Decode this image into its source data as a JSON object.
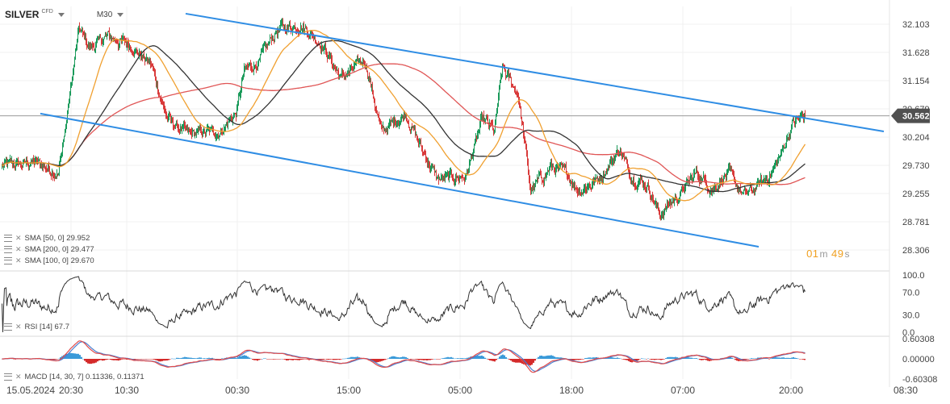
{
  "header": {
    "symbol": "SILVER",
    "badge": "CFD",
    "timeframe": "M30"
  },
  "indicators": {
    "sma50": "SMA [50, 0] 29.952",
    "sma200": "SMA [200, 0] 29.477",
    "sma100": "SMA [100, 0] 29.670",
    "rsi": "RSI [14] 67.7",
    "macd": "MACD [14, 30, 7] 0.11336, 0.11371"
  },
  "countdown": {
    "minutes": "01",
    "m_unit": "m",
    "seconds": "49",
    "s_unit": "s"
  },
  "colors": {
    "up_candle": "#1a9a5a",
    "down_candle": "#d93b3b",
    "channel": "#2f8de4",
    "sma_fast": "#f0a030",
    "sma_mid": "#333333",
    "sma_slow": "#e05555",
    "price_tag": "#505050",
    "rsi_line": "#333333",
    "macd_line": "#e04a4a",
    "signal_line": "#4a7fd0",
    "hist_pos": "#3a9ad9",
    "hist_neg": "#d42a2a"
  },
  "chart_data": {
    "type": "candlestick",
    "instrument": "SILVER",
    "timeframe": "M30",
    "y_ticks": [
      "32.103",
      "31.628",
      "31.154",
      "30.679",
      "30.204",
      "29.730",
      "29.255",
      "28.781",
      "28.306"
    ],
    "ylim": [
      28.306,
      32.103
    ],
    "current_price": "30.562",
    "x_ticks": [
      "15.05.2024",
      "20:30",
      "10:30",
      "00:30",
      "15:00",
      "05:00",
      "18:00",
      "07:00",
      "20:00",
      "08:30"
    ],
    "price_anchors": [
      [
        0,
        29.72
      ],
      [
        40,
        29.78
      ],
      [
        70,
        29.6
      ],
      [
        80,
        30.5
      ],
      [
        95,
        32.0
      ],
      [
        110,
        31.7
      ],
      [
        130,
        31.9
      ],
      [
        160,
        31.75
      ],
      [
        185,
        31.4
      ],
      [
        205,
        30.5
      ],
      [
        230,
        30.25
      ],
      [
        270,
        30.3
      ],
      [
        290,
        30.6
      ],
      [
        300,
        31.3
      ],
      [
        320,
        31.5
      ],
      [
        340,
        32.0
      ],
      [
        370,
        32.1
      ],
      [
        395,
        31.8
      ],
      [
        420,
        31.2
      ],
      [
        450,
        31.5
      ],
      [
        470,
        30.3
      ],
      [
        500,
        30.6
      ],
      [
        520,
        30.0
      ],
      [
        540,
        29.5
      ],
      [
        575,
        29.55
      ],
      [
        595,
        30.5
      ],
      [
        610,
        30.3
      ],
      [
        620,
        31.35
      ],
      [
        640,
        30.9
      ],
      [
        655,
        29.3
      ],
      [
        680,
        29.7
      ],
      [
        700,
        29.6
      ],
      [
        715,
        29.3
      ],
      [
        740,
        29.5
      ],
      [
        765,
        30.0
      ],
      [
        780,
        29.55
      ],
      [
        800,
        29.4
      ],
      [
        815,
        28.9
      ],
      [
        840,
        29.25
      ],
      [
        860,
        29.6
      ],
      [
        880,
        29.35
      ],
      [
        900,
        29.6
      ],
      [
        920,
        29.2
      ],
      [
        950,
        29.55
      ],
      [
        965,
        29.9
      ],
      [
        980,
        30.45
      ],
      [
        995,
        30.56
      ]
    ],
    "channel_upper": {
      "start": {
        "x_index": 230,
        "price": 32.28
      },
      "end": {
        "x_index": 1095,
        "price": 30.3
      }
    },
    "channel_lower": {
      "start": {
        "x_index": 50,
        "price": 30.6
      },
      "end": {
        "x_index": 940,
        "price": 28.36
      }
    },
    "sma_periods": [
      50,
      100,
      200
    ],
    "sma_last": {
      "sma50": 29.952,
      "sma100": 29.67,
      "sma200": 29.477
    },
    "rsi": {
      "ticks": [
        "100.0",
        "70.0",
        "30.0",
        "0.0"
      ],
      "ylim": [
        0,
        100
      ],
      "last": 67.7
    },
    "macd": {
      "ticks": [
        "0.60308",
        "0.00000",
        "-0.60308"
      ],
      "ylim": [
        -0.60308,
        0.60308
      ],
      "last": [
        0.11336,
        0.11371
      ]
    }
  }
}
